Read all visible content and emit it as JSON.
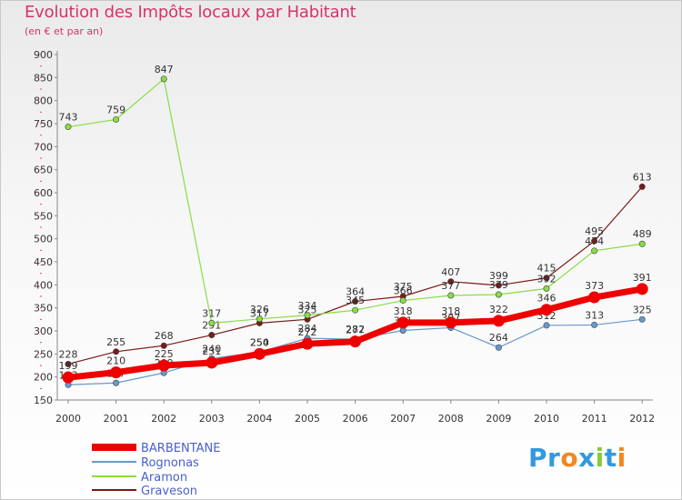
{
  "chart_data": {
    "type": "line",
    "title": "Evolution des Impôts locaux par Habitant",
    "subtitle": "(en € et par an)",
    "xlabel": "",
    "ylabel": "",
    "x": [
      "2000",
      "2001",
      "2002",
      "2003",
      "2004",
      "2005",
      "2006",
      "2007",
      "2008",
      "2009",
      "2010",
      "2011",
      "2012"
    ],
    "ylim": [
      150,
      900
    ],
    "yticks": [
      150,
      200,
      250,
      300,
      350,
      400,
      450,
      500,
      550,
      600,
      650,
      700,
      750,
      800,
      850,
      900
    ],
    "grid": false,
    "legend_position": "bottom-left",
    "series": [
      {
        "name": "BARBENTANE",
        "color": "#ee0000",
        "values": [
          199,
          210,
          225,
          231,
          250,
          272,
          277,
          318,
          318,
          322,
          346,
          373,
          391
        ]
      },
      {
        "name": "Rognonas",
        "color": "#6699cc",
        "values": [
          183,
          187,
          209,
          240,
          254,
          284,
          282,
          301,
          307,
          264,
          312,
          313,
          325
        ]
      },
      {
        "name": "Aramon",
        "color": "#88dd44",
        "values": [
          743,
          759,
          847,
          317,
          326,
          334,
          345,
          366,
          377,
          379,
          392,
          474,
          489
        ]
      },
      {
        "name": "Graveson",
        "color": "#7a1a1a",
        "values": [
          228,
          255,
          268,
          291,
          317,
          325,
          364,
          375,
          407,
          399,
          415,
          495,
          613
        ]
      }
    ]
  },
  "logo": {
    "text": [
      "P",
      "r",
      "o",
      "x",
      "i",
      "t",
      "i"
    ],
    "colors": [
      "#3399dd",
      "#3399dd",
      "#ee8822",
      "#3399dd",
      "#88cc33",
      "#3399dd",
      "#ee8822"
    ]
  }
}
